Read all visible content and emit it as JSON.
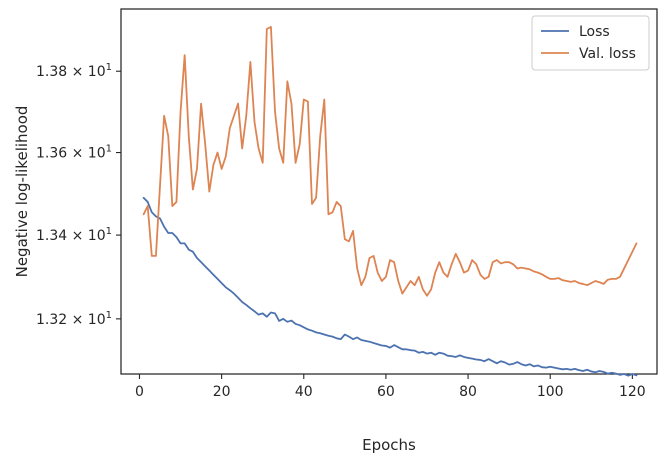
{
  "chart_data": {
    "type": "line",
    "title": "",
    "xlabel": "Epochs",
    "ylabel": "Negative log-likelihood",
    "xlim": [
      -4.5,
      126
    ],
    "ylim": [
      13.07,
      13.955
    ],
    "yscale": "log",
    "grid": false,
    "legend_position": "top-right",
    "x_ticks": [
      0,
      20,
      40,
      60,
      80,
      100,
      120
    ],
    "y_ticks": [
      {
        "value": 13.2,
        "mantissa": "1.32",
        "base": "10",
        "exponent": "1"
      },
      {
        "value": 13.4,
        "mantissa": "1.34",
        "base": "10",
        "exponent": "1"
      },
      {
        "value": 13.6,
        "mantissa": "1.36",
        "base": "10",
        "exponent": "1"
      },
      {
        "value": 13.8,
        "mantissa": "1.38",
        "base": "10",
        "exponent": "1"
      }
    ],
    "series": [
      {
        "name": "Loss",
        "color": "#4c72b0",
        "x": [
          1,
          2,
          3,
          4,
          5,
          6,
          7,
          8,
          9,
          10,
          11,
          12,
          13,
          14,
          15,
          16,
          17,
          18,
          19,
          20,
          21,
          22,
          23,
          24,
          25,
          26,
          27,
          28,
          29,
          30,
          31,
          32,
          33,
          34,
          35,
          36,
          37,
          38,
          39,
          40,
          41,
          42,
          43,
          44,
          45,
          46,
          47,
          48,
          49,
          50,
          51,
          52,
          53,
          54,
          55,
          56,
          57,
          58,
          59,
          60,
          61,
          62,
          63,
          64,
          65,
          66,
          67,
          68,
          69,
          70,
          71,
          72,
          73,
          74,
          75,
          76,
          77,
          78,
          79,
          80,
          81,
          82,
          83,
          84,
          85,
          86,
          87,
          88,
          89,
          90,
          91,
          92,
          93,
          94,
          95,
          96,
          97,
          98,
          99,
          100,
          101,
          102,
          103,
          104,
          105,
          106,
          107,
          108,
          109,
          110,
          111,
          112,
          113,
          114,
          115,
          116,
          117,
          118,
          119,
          120,
          121
        ],
        "values": [
          13.49,
          13.48,
          13.455,
          13.445,
          13.44,
          13.42,
          13.405,
          13.405,
          13.395,
          13.38,
          13.38,
          13.365,
          13.36,
          13.345,
          13.335,
          13.325,
          13.315,
          13.305,
          13.295,
          13.285,
          13.275,
          13.268,
          13.26,
          13.25,
          13.24,
          13.233,
          13.225,
          13.218,
          13.21,
          13.213,
          13.205,
          13.215,
          13.213,
          13.195,
          13.2,
          13.193,
          13.196,
          13.188,
          13.185,
          13.18,
          13.175,
          13.172,
          13.168,
          13.166,
          13.163,
          13.16,
          13.158,
          13.154,
          13.152,
          13.163,
          13.158,
          13.152,
          13.156,
          13.15,
          13.148,
          13.146,
          13.143,
          13.14,
          13.137,
          13.136,
          13.132,
          13.138,
          13.133,
          13.128,
          13.128,
          13.126,
          13.125,
          13.12,
          13.122,
          13.118,
          13.12,
          13.115,
          13.12,
          13.118,
          13.113,
          13.112,
          13.11,
          13.114,
          13.11,
          13.108,
          13.106,
          13.104,
          13.103,
          13.1,
          13.105,
          13.1,
          13.095,
          13.1,
          13.097,
          13.092,
          13.094,
          13.098,
          13.093,
          13.09,
          13.093,
          13.088,
          13.09,
          13.086,
          13.085,
          13.087,
          13.085,
          13.083,
          13.081,
          13.082,
          13.08,
          13.082,
          13.079,
          13.077,
          13.08,
          13.076,
          13.074,
          13.077,
          13.075,
          13.071,
          13.073,
          13.071,
          13.068,
          13.07,
          13.066,
          13.07,
          13.067
        ]
      },
      {
        "name": "Val. loss",
        "color": "#dd8452",
        "x": [
          1,
          2,
          3,
          4,
          5,
          6,
          7,
          8,
          9,
          10,
          11,
          12,
          13,
          14,
          15,
          16,
          17,
          18,
          19,
          20,
          21,
          22,
          23,
          24,
          25,
          26,
          27,
          28,
          29,
          30,
          31,
          32,
          33,
          34,
          35,
          36,
          37,
          38,
          39,
          40,
          41,
          42,
          43,
          44,
          45,
          46,
          47,
          48,
          49,
          50,
          51,
          52,
          53,
          54,
          55,
          56,
          57,
          58,
          59,
          60,
          61,
          62,
          63,
          64,
          65,
          66,
          67,
          68,
          69,
          70,
          71,
          72,
          73,
          74,
          75,
          76,
          77,
          78,
          79,
          80,
          81,
          82,
          83,
          84,
          85,
          86,
          87,
          88,
          89,
          90,
          91,
          92,
          93,
          94,
          95,
          96,
          97,
          98,
          99,
          100,
          101,
          102,
          103,
          104,
          105,
          106,
          107,
          108,
          109,
          110,
          111,
          112,
          113,
          114,
          115,
          116,
          117,
          118,
          119,
          120,
          121
        ],
        "values": [
          13.45,
          13.47,
          13.35,
          13.35,
          13.52,
          13.69,
          13.64,
          13.47,
          13.48,
          13.7,
          13.84,
          13.64,
          13.51,
          13.56,
          13.72,
          13.62,
          13.505,
          13.57,
          13.6,
          13.56,
          13.59,
          13.66,
          13.69,
          13.72,
          13.61,
          13.69,
          13.823,
          13.675,
          13.61,
          13.575,
          13.905,
          13.91,
          13.7,
          13.61,
          13.575,
          13.775,
          13.72,
          13.575,
          13.62,
          13.73,
          13.725,
          13.475,
          13.49,
          13.64,
          13.73,
          13.45,
          13.455,
          13.48,
          13.47,
          13.39,
          13.385,
          13.41,
          13.32,
          13.28,
          13.3,
          13.345,
          13.35,
          13.31,
          13.29,
          13.3,
          13.34,
          13.335,
          13.29,
          13.26,
          13.275,
          13.29,
          13.28,
          13.3,
          13.27,
          13.255,
          13.27,
          13.31,
          13.335,
          13.31,
          13.3,
          13.33,
          13.355,
          13.335,
          13.31,
          13.315,
          13.34,
          13.33,
          13.305,
          13.295,
          13.3,
          13.335,
          13.34,
          13.332,
          13.335,
          13.335,
          13.33,
          13.32,
          13.322,
          13.32,
          13.318,
          13.313,
          13.31,
          13.306,
          13.3,
          13.295,
          13.295,
          13.297,
          13.292,
          13.29,
          13.288,
          13.29,
          13.285,
          13.283,
          13.28,
          13.285,
          13.29,
          13.287,
          13.283,
          13.293,
          13.295,
          13.295,
          13.3,
          13.32,
          13.34,
          13.36,
          13.38
        ]
      }
    ]
  }
}
